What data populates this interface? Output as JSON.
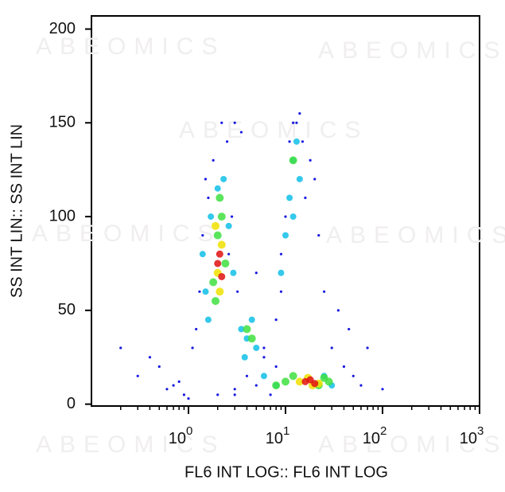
{
  "chart_data": {
    "type": "scatter",
    "xlabel": "FL6 INT LOG:: FL6 INT LOG",
    "ylabel": "SS INT LIN:: SS INT LIN",
    "watermark": "ABEOMICS",
    "xscale": "log",
    "xlim": [
      0.1,
      1000
    ],
    "xticks": [
      {
        "value": 1,
        "label": "10",
        "exponent": "0"
      },
      {
        "value": 10,
        "label": "10",
        "exponent": "1"
      },
      {
        "value": 100,
        "label": "10",
        "exponent": "2"
      },
      {
        "value": 1000,
        "label": "10",
        "exponent": "3"
      }
    ],
    "minor_ticks": true,
    "ylim": [
      -1,
      207
    ],
    "yticks": [
      0,
      50,
      100,
      150,
      200
    ],
    "series": [
      {
        "color": "#1a1ae0",
        "x": [
          0.5,
          0.7,
          0.9,
          1.1,
          1.3,
          1.6,
          2.5,
          3,
          3.5,
          1.5,
          1.8,
          2.2,
          2.8,
          3.2,
          6,
          8,
          9,
          10,
          14,
          18,
          22,
          25,
          30,
          40,
          50,
          60,
          0.3,
          0.4,
          0.6,
          0.8,
          1.2,
          2,
          3,
          5,
          7,
          12,
          15,
          20,
          35,
          45,
          70,
          100,
          0.2,
          5,
          9,
          11,
          13,
          16,
          8,
          6,
          4,
          3,
          1,
          1.4,
          2.6
        ],
        "values": [
          20,
          10,
          5,
          30,
          60,
          110,
          140,
          150,
          145,
          120,
          130,
          150,
          100,
          60,
          30,
          20,
          60,
          100,
          155,
          130,
          90,
          60,
          30,
          20,
          15,
          10,
          15,
          25,
          8,
          12,
          40,
          5,
          8,
          10,
          5,
          150,
          140,
          120,
          50,
          40,
          30,
          8,
          30,
          70,
          80,
          140,
          150,
          110,
          45,
          25,
          15,
          5,
          3,
          90,
          80
        ]
      },
      {
        "color": "#10c0e8",
        "x": [
          1.5,
          1.7,
          2,
          2.3,
          2.6,
          1.4,
          1.6,
          2.9,
          3.5,
          4,
          4.5,
          5,
          3.8,
          11,
          12,
          13,
          10,
          14,
          9,
          12,
          8,
          25,
          30,
          6
        ],
        "values": [
          60,
          100,
          115,
          120,
          95,
          80,
          45,
          70,
          40,
          35,
          45,
          30,
          25,
          110,
          130,
          140,
          90,
          120,
          70,
          100,
          10,
          15,
          10,
          15
        ]
      },
      {
        "color": "#40e040",
        "x": [
          1.8,
          2,
          2.2,
          2.4,
          1.9,
          2.1,
          4,
          4.5,
          10,
          12,
          22,
          25,
          12,
          28,
          8
        ],
        "values": [
          65,
          90,
          100,
          75,
          55,
          110,
          40,
          35,
          12,
          15,
          10,
          14,
          130,
          12,
          10
        ]
      },
      {
        "color": "#f0e000",
        "x": [
          2,
          2.2,
          1.9,
          2.1,
          14,
          17,
          22,
          19
        ],
        "values": [
          70,
          85,
          95,
          60,
          12,
          14,
          11,
          10
        ]
      },
      {
        "color": "#e01010",
        "x": [
          2,
          2.1,
          2.2,
          16,
          18,
          20
        ],
        "values": [
          75,
          80,
          68,
          12,
          13,
          11
        ]
      }
    ]
  }
}
